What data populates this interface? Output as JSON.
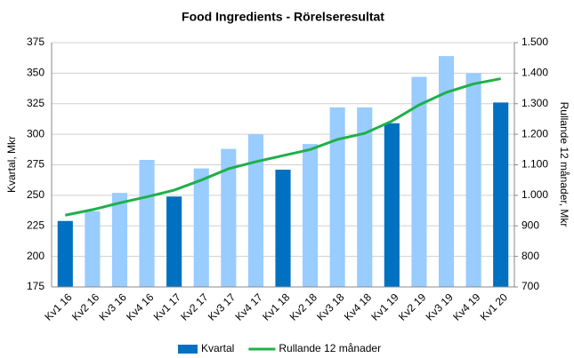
{
  "chart_data": {
    "type": "bar_line",
    "title": "Food Ingredients -  Rörelseresultat",
    "y_label": "Kvartal, Mkr",
    "y2_label": "Rullande 12 månader, Mkr",
    "categories": [
      "Kv1 16",
      "Kv2 16",
      "Kv3 16",
      "Kv4 16",
      "Kv1 17",
      "Kv2 17",
      "Kv3 17",
      "Kv4 17",
      "Kv1 18",
      "Kv2 18",
      "Kv3 18",
      "Kv4 18",
      "Kv1 19",
      "Kv2 19",
      "Kv3 19",
      "Kv4 19",
      "Kv1 20"
    ],
    "series": [
      {
        "name": "Kvartal",
        "type": "bar",
        "color": "#0070c0",
        "colors": [
          "#0070c0",
          "#99ccff",
          "#99ccff",
          "#99ccff",
          "#0070c0",
          "#99ccff",
          "#99ccff",
          "#99ccff",
          "#0070c0",
          "#99ccff",
          "#99ccff",
          "#99ccff",
          "#0070c0",
          "#99ccff",
          "#99ccff",
          "#99ccff",
          "#0070c0"
        ],
        "values": [
          229,
          237,
          252,
          279,
          249,
          272,
          288,
          300,
          271,
          292,
          322,
          322,
          309,
          347,
          364,
          350,
          326
        ]
      },
      {
        "name": "Rullande 12 månader",
        "type": "line",
        "axis": "y2",
        "color": "#1fb04a",
        "values": [
          935,
          953,
          975,
          995,
          1017,
          1050,
          1087,
          1110,
          1130,
          1150,
          1183,
          1203,
          1243,
          1296,
          1337,
          1365,
          1382
        ]
      }
    ],
    "ylim": [
      175,
      375
    ],
    "yticks": [
      175,
      200,
      225,
      250,
      275,
      300,
      325,
      350,
      375
    ],
    "y2lim": [
      700,
      1500
    ],
    "y2ticks": [
      700,
      800,
      900,
      {
        "value": 1000,
        "label": "1.000"
      },
      {
        "value": 1100,
        "label": "1.100"
      },
      {
        "value": 1200,
        "label": "1.200"
      },
      {
        "value": 1300,
        "label": "1.300"
      },
      {
        "value": 1400,
        "label": "1.400"
      },
      {
        "value": 1500,
        "label": "1.500"
      }
    ],
    "grid": true,
    "legend": "bottom"
  }
}
